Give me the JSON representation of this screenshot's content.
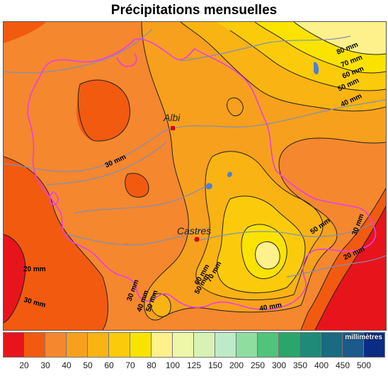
{
  "title": "Précipitations mensuelles",
  "cities": [
    {
      "name": "Albi",
      "marker_color": "#d40000"
    },
    {
      "name": "Castres",
      "marker_color": "#d40000"
    }
  ],
  "contour_labels": [
    "80 mm",
    "70 mm",
    "60 mm",
    "50 mm",
    "40 mm",
    "30 mm",
    "30 mm",
    "20 mm",
    "20 mm",
    "30 mm",
    "30 mm",
    "40 mm",
    "50 mm",
    "50 mm",
    "60 mm",
    "70 mm",
    "50 mm",
    "40 mm"
  ],
  "legend": {
    "unit": "millimètres",
    "colors": [
      "#e8141c",
      "#f25a10",
      "#f5872e",
      "#f7a01d",
      "#f9b313",
      "#fbcb0b",
      "#fbe300",
      "#fef08a",
      "#eef7a8",
      "#d8f2b4",
      "#bdebc7",
      "#8fdea0",
      "#4fc47a",
      "#2aa66a",
      "#1e8a78",
      "#1a6a80",
      "#1b5a8a",
      "#0b2c84"
    ],
    "ticks": [
      "20",
      "30",
      "40",
      "50",
      "60",
      "70",
      "80",
      "100",
      "125",
      "150",
      "200",
      "250",
      "300",
      "350",
      "400",
      "450",
      "500"
    ]
  },
  "colors": {
    "border_department": "#e83ee8",
    "rivers": "#7f8fb8",
    "water": "#4d7fd6"
  }
}
